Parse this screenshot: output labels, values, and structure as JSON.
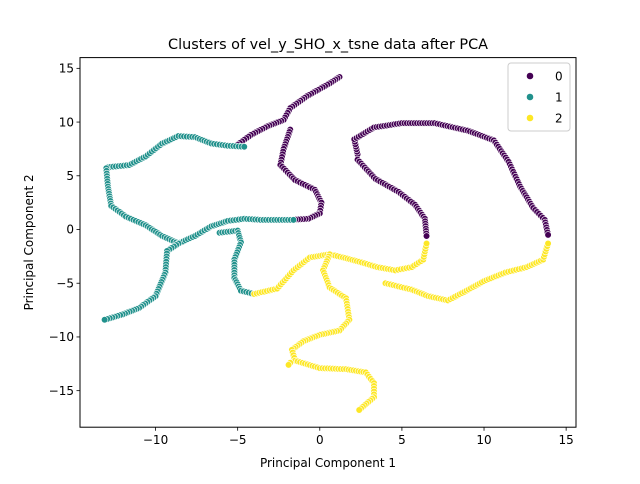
{
  "chart_data": {
    "type": "scatter",
    "title": "Clusters of vel_y_SHO_x_tsne data after PCA",
    "xlabel": "Principal Component 1",
    "ylabel": "Principal Component 2",
    "xlim": [
      -14.6,
      15.6
    ],
    "ylim": [
      -18.4,
      16.0
    ],
    "xticks": [
      -10,
      -5,
      0,
      5,
      10,
      15
    ],
    "yticks": [
      -15,
      -10,
      -5,
      0,
      5,
      10,
      15
    ],
    "xtick_labels": [
      "−10",
      "−5",
      "0",
      "5",
      "10",
      "15"
    ],
    "ytick_labels": [
      "−15",
      "−10",
      "−5",
      "0",
      "5",
      "10",
      "15"
    ],
    "grid": false,
    "legend_placement": "top-right",
    "series": [
      {
        "name": "0",
        "color": "#440154",
        "curve": [
          [
            1.2,
            14.2
          ],
          [
            0.6,
            13.6
          ],
          [
            -0.8,
            12.4
          ],
          [
            -1.8,
            11.3
          ],
          [
            -2.2,
            10.2
          ],
          [
            -3.2,
            9.6
          ],
          [
            -4.2,
            8.8
          ],
          [
            -5.0,
            7.9
          ],
          [
            -1.8,
            9.3
          ],
          [
            -2.2,
            7.5
          ],
          [
            -2.4,
            6.0
          ],
          [
            -1.5,
            4.6
          ],
          [
            -0.3,
            3.7
          ],
          [
            0.1,
            2.5
          ],
          [
            0.0,
            1.5
          ],
          [
            -0.7,
            1.0
          ],
          [
            -1.8,
            0.9
          ],
          [
            2.3,
            7.0
          ],
          [
            2.1,
            8.4
          ],
          [
            3.3,
            9.5
          ],
          [
            5.0,
            9.9
          ],
          [
            7.0,
            9.9
          ],
          [
            9.0,
            9.2
          ],
          [
            10.6,
            8.3
          ],
          [
            11.5,
            6.3
          ],
          [
            12.2,
            4.0
          ],
          [
            13.0,
            2.0
          ],
          [
            13.7,
            0.9
          ],
          [
            13.9,
            -0.5
          ],
          [
            2.3,
            6.5
          ],
          [
            3.4,
            4.7
          ],
          [
            4.8,
            3.5
          ],
          [
            5.8,
            2.3
          ],
          [
            6.4,
            1.0
          ],
          [
            6.5,
            -0.6
          ]
        ]
      },
      {
        "name": "1",
        "color": "#21918c",
        "curve": [
          [
            -13.0,
            5.6
          ],
          [
            -12.9,
            5.8
          ],
          [
            -11.6,
            6.0
          ],
          [
            -10.6,
            6.8
          ],
          [
            -9.6,
            8.0
          ],
          [
            -8.6,
            8.7
          ],
          [
            -7.6,
            8.6
          ],
          [
            -6.6,
            8.0
          ],
          [
            -5.6,
            7.8
          ],
          [
            -4.6,
            7.7
          ],
          [
            -13.0,
            5.7
          ],
          [
            -12.9,
            4.0
          ],
          [
            -12.7,
            2.2
          ],
          [
            -11.8,
            1.2
          ],
          [
            -10.6,
            0.4
          ],
          [
            -9.6,
            -0.6
          ],
          [
            -8.6,
            -1.3
          ],
          [
            -7.6,
            -0.6
          ],
          [
            -6.6,
            0.3
          ],
          [
            -5.6,
            0.8
          ],
          [
            -4.6,
            1.0
          ],
          [
            -3.6,
            0.9
          ],
          [
            -2.6,
            0.9
          ],
          [
            -1.6,
            0.9
          ],
          [
            -8.6,
            -1.3
          ],
          [
            -9.3,
            -2.0
          ],
          [
            -9.4,
            -4.0
          ],
          [
            -10.0,
            -6.2
          ],
          [
            -11.0,
            -7.3
          ],
          [
            -12.0,
            -7.9
          ],
          [
            -13.1,
            -8.4
          ],
          [
            -6.1,
            -0.3
          ],
          [
            -5.0,
            -0.1
          ],
          [
            -4.8,
            -1.2
          ],
          [
            -5.2,
            -2.8
          ],
          [
            -5.2,
            -4.5
          ],
          [
            -4.8,
            -5.7
          ],
          [
            -4.0,
            -6.0
          ]
        ]
      },
      {
        "name": "2",
        "color": "#fde725",
        "curve": [
          [
            -4.0,
            -6.0
          ],
          [
            -2.6,
            -5.5
          ],
          [
            -1.6,
            -3.8
          ],
          [
            -0.6,
            -2.6
          ],
          [
            0.6,
            -2.3
          ],
          [
            1.4,
            -2.6
          ],
          [
            2.4,
            -3.0
          ],
          [
            3.5,
            -3.5
          ],
          [
            4.6,
            -3.8
          ],
          [
            5.6,
            -3.5
          ],
          [
            6.3,
            -2.8
          ],
          [
            6.5,
            -1.3
          ],
          [
            0.6,
            -2.3
          ],
          [
            0.2,
            -3.8
          ],
          [
            0.6,
            -5.4
          ],
          [
            1.6,
            -6.4
          ],
          [
            1.8,
            -8.4
          ],
          [
            1.2,
            -9.4
          ],
          [
            0.0,
            -9.8
          ],
          [
            -1.0,
            -10.4
          ],
          [
            -1.7,
            -11.2
          ],
          [
            -1.5,
            -12.2
          ],
          [
            0.0,
            -12.9
          ],
          [
            1.6,
            -13.0
          ],
          [
            2.8,
            -13.3
          ],
          [
            3.3,
            -14.3
          ],
          [
            3.3,
            -15.6
          ],
          [
            2.4,
            -16.8
          ],
          [
            -1.8,
            -12.4
          ],
          [
            -1.9,
            -12.6
          ],
          [
            4.0,
            -5.0
          ],
          [
            5.6,
            -5.6
          ],
          [
            6.6,
            -6.2
          ],
          [
            7.8,
            -6.6
          ],
          [
            8.8,
            -5.8
          ],
          [
            10.0,
            -4.8
          ],
          [
            11.3,
            -4.0
          ],
          [
            12.6,
            -3.5
          ],
          [
            13.6,
            -2.8
          ],
          [
            13.9,
            -1.3
          ]
        ]
      }
    ]
  }
}
